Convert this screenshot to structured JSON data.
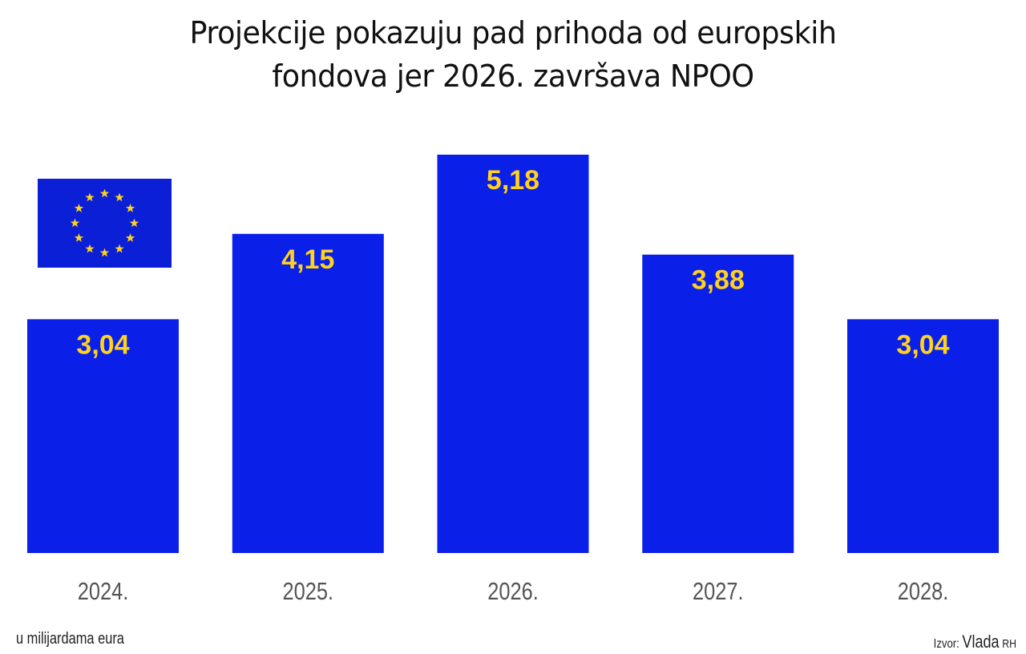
{
  "title_lines": [
    "Projekcije pokazuju pad prihoda od europskih",
    "fondova jer 2026. završava NPOO"
  ],
  "unit_note": "u milijardama eura",
  "source": {
    "label": "Izvor:",
    "name": "Vlada",
    "suffix": "RH"
  },
  "emblem": {
    "icon": "eu-flag-icon",
    "colors": {
      "field": "#0a1fd6",
      "stars": "#ffd21e"
    }
  },
  "colors": {
    "bar": "#0a1fe8",
    "value_label": "#ffd21e",
    "tick_label": "#555555"
  },
  "chart_data": {
    "type": "bar",
    "categories": [
      "2024.",
      "2025.",
      "2026.",
      "2027.",
      "2028."
    ],
    "values": [
      3.04,
      4.15,
      5.18,
      3.88,
      3.04
    ],
    "value_labels": [
      "3,04",
      "4,15",
      "5,18",
      "3,88",
      "3,04"
    ],
    "title": "Projekcije pokazuju pad prihoda od europskih fondova jer 2026. završava NPOO",
    "xlabel": "",
    "ylabel": "",
    "unit": "u milijardama eura",
    "ylim": [
      0,
      5.18
    ],
    "grid": false,
    "legend": "none"
  }
}
